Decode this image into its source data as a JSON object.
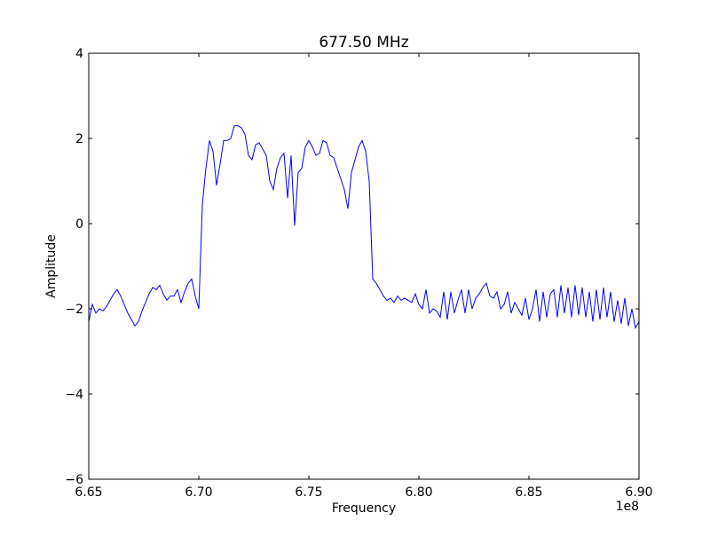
{
  "chart_data": {
    "type": "line",
    "title": "677.50 MHz",
    "xlabel": "Frequency",
    "ylabel": "Amplitude",
    "x_offset_label": "1e8",
    "xlim": [
      6.65,
      6.9
    ],
    "ylim": [
      -6,
      4
    ],
    "x_ticks": [
      "6.65",
      "6.70",
      "6.75",
      "6.80",
      "6.85",
      "6.90"
    ],
    "x_tick_values": [
      6.65,
      6.7,
      6.75,
      6.8,
      6.85,
      6.9
    ],
    "y_ticks": [
      "4",
      "2",
      "0",
      "−2",
      "−4",
      "−6"
    ],
    "y_tick_values": [
      4,
      2,
      0,
      -2,
      -4,
      -6
    ],
    "grid": false,
    "series": [
      {
        "name": "amplitude",
        "color": "#0000ff",
        "x_start": 6.65,
        "x_end": 6.9,
        "values": [
          -2.3,
          -1.9,
          -2.1,
          -2.0,
          -2.05,
          -1.95,
          -1.8,
          -1.65,
          -1.55,
          -1.7,
          -1.9,
          -2.1,
          -2.25,
          -2.4,
          -2.3,
          -2.05,
          -1.85,
          -1.65,
          -1.5,
          -1.55,
          -1.45,
          -1.65,
          -1.8,
          -1.7,
          -1.7,
          -1.55,
          -1.85,
          -1.6,
          -1.4,
          -1.3,
          -1.7,
          -2.0,
          0.45,
          1.3,
          1.95,
          1.7,
          0.9,
          1.4,
          1.95,
          1.95,
          2.0,
          2.3,
          2.3,
          2.25,
          2.1,
          1.6,
          1.5,
          1.85,
          1.9,
          1.75,
          1.6,
          1.0,
          0.8,
          1.3,
          1.55,
          1.65,
          0.6,
          1.6,
          -0.05,
          1.2,
          1.3,
          1.8,
          1.95,
          1.8,
          1.6,
          1.65,
          1.95,
          1.9,
          1.6,
          1.55,
          1.3,
          1.05,
          0.8,
          0.35,
          1.2,
          1.5,
          1.8,
          1.95,
          1.7,
          1.0,
          -1.3,
          -1.4,
          -1.55,
          -1.7,
          -1.8,
          -1.75,
          -1.85,
          -1.7,
          -1.8,
          -1.75,
          -1.8,
          -1.85,
          -1.65,
          -1.9,
          -2.0,
          -1.55,
          -2.1,
          -2.0,
          -2.05,
          -2.2,
          -1.6,
          -2.25,
          -1.6,
          -2.1,
          -1.8,
          -1.55,
          -2.1,
          -1.55,
          -2.0,
          -1.75,
          -1.65,
          -1.5,
          -1.4,
          -1.7,
          -1.75,
          -1.6,
          -2.0,
          -1.9,
          -1.6,
          -2.1,
          -1.85,
          -2.0,
          -2.15,
          -1.75,
          -2.25,
          -2.0,
          -1.55,
          -2.3,
          -1.6,
          -2.2,
          -1.65,
          -1.55,
          -2.2,
          -1.45,
          -2.1,
          -1.5,
          -2.2,
          -1.45,
          -2.15,
          -1.5,
          -2.2,
          -1.6,
          -2.3,
          -1.55,
          -2.25,
          -1.5,
          -2.2,
          -1.6,
          -2.3,
          -1.8,
          -2.35,
          -1.75,
          -2.4,
          -2.0,
          -2.45,
          -2.3
        ]
      }
    ]
  }
}
